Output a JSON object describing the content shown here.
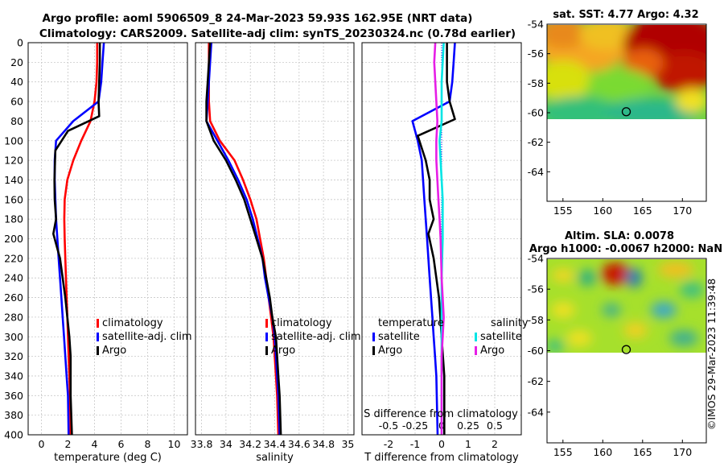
{
  "title": {
    "line1": "Argo profile: aoml 5906509_8 24-Mar-2023 59.93S 162.95E (NRT data)",
    "line2": "Climatology: CARS2009. Satellite-adj clim: synTS_20230324.nc (0.78d earlier)"
  },
  "colors": {
    "climatology": "#ff0000",
    "satellite": "#0000ff",
    "argo": "#000000",
    "sat_salinity": "#00e5e5",
    "argo_salinity": "#e61ee6"
  },
  "chart_data": [
    {
      "type": "line",
      "id": "temperature",
      "xlabel": "temperature (deg C)",
      "ylabel": "",
      "xlim": [
        -1,
        11
      ],
      "ylim": [
        0,
        400
      ],
      "y_reversed": true,
      "xticks": [
        "0",
        "2",
        "4",
        "6",
        "8",
        "10"
      ],
      "yticks": [
        "0",
        "20",
        "40",
        "60",
        "80",
        "100",
        "120",
        "140",
        "160",
        "180",
        "200",
        "220",
        "240",
        "260",
        "280",
        "300",
        "320",
        "340",
        "360",
        "380",
        "400"
      ],
      "grid": true,
      "legend": {
        "position": "lower-right",
        "entries": [
          "climatology",
          "satellite-adj. clim",
          "Argo"
        ]
      },
      "series": [
        {
          "name": "climatology",
          "color": "red",
          "x": [
            4.2,
            4.2,
            4.15,
            4.0,
            3.7,
            3.0,
            2.4,
            1.95,
            1.75,
            1.72,
            1.75,
            1.8,
            1.85,
            1.9,
            1.95,
            2.0,
            2.05,
            2.1,
            2.15,
            2.2
          ],
          "y": [
            0,
            20,
            40,
            60,
            80,
            100,
            120,
            140,
            160,
            180,
            200,
            220,
            240,
            260,
            280,
            300,
            320,
            340,
            360,
            400
          ]
        },
        {
          "name": "satellite-adj. clim",
          "color": "blue",
          "x": [
            4.7,
            4.6,
            4.5,
            4.3,
            2.4,
            1.1,
            1.0,
            1.0,
            1.05,
            1.1,
            1.2,
            1.3,
            1.4,
            1.5,
            1.6,
            1.7,
            1.8,
            1.9,
            2.0,
            2.05
          ],
          "y": [
            0,
            20,
            40,
            60,
            80,
            100,
            120,
            140,
            160,
            180,
            200,
            220,
            240,
            260,
            280,
            300,
            320,
            340,
            360,
            400
          ]
        },
        {
          "name": "Argo",
          "color": "black",
          "x": [
            4.4,
            4.4,
            4.35,
            4.3,
            4.35,
            2.0,
            1.05,
            0.98,
            1.0,
            1.1,
            0.9,
            1.4,
            1.6,
            1.8,
            1.95,
            2.1,
            2.2,
            2.2,
            2.2,
            2.3
          ],
          "y": [
            0,
            20,
            40,
            60,
            75,
            90,
            110,
            140,
            160,
            180,
            195,
            220,
            240,
            260,
            280,
            300,
            320,
            340,
            360,
            400
          ]
        }
      ]
    },
    {
      "type": "line",
      "id": "salinity",
      "xlabel": "salinity",
      "xlim": [
        33.75,
        35.05
      ],
      "ylim": [
        0,
        400
      ],
      "y_reversed": true,
      "xticks": [
        "33.8",
        "34",
        "34.2",
        "34.4",
        "34.6",
        "34.8",
        "35"
      ],
      "grid": true,
      "legend": {
        "position": "lower-right",
        "entries": [
          "climatology",
          "satellite-adj. clim",
          "Argo"
        ]
      },
      "series": [
        {
          "name": "climatology",
          "color": "red",
          "x": [
            33.86,
            33.86,
            33.86,
            33.86,
            33.87,
            33.95,
            34.07,
            34.14,
            34.2,
            34.25,
            34.28,
            34.31,
            34.33,
            34.35,
            34.37,
            34.39,
            34.4,
            34.41,
            34.42,
            34.43
          ],
          "y": [
            0,
            20,
            40,
            60,
            80,
            100,
            120,
            140,
            160,
            180,
            200,
            220,
            240,
            260,
            280,
            300,
            320,
            340,
            360,
            400
          ]
        },
        {
          "name": "satellite-adj. clim",
          "color": "blue",
          "x": [
            33.88,
            33.87,
            33.86,
            33.85,
            33.84,
            33.93,
            34.02,
            34.1,
            34.17,
            34.22,
            34.26,
            34.3,
            34.32,
            34.35,
            34.38,
            34.4,
            34.41,
            34.42,
            34.43,
            34.44
          ],
          "y": [
            0,
            20,
            40,
            60,
            80,
            100,
            120,
            140,
            160,
            180,
            200,
            220,
            240,
            260,
            280,
            300,
            320,
            340,
            360,
            400
          ]
        },
        {
          "name": "Argo",
          "color": "black",
          "x": [
            33.87,
            33.86,
            33.85,
            33.84,
            33.84,
            33.9,
            34.0,
            34.08,
            34.15,
            34.2,
            34.25,
            34.3,
            34.33,
            34.36,
            34.38,
            34.41,
            34.42,
            34.43,
            34.44,
            34.45
          ],
          "y": [
            0,
            20,
            40,
            60,
            80,
            100,
            120,
            140,
            160,
            180,
            200,
            220,
            240,
            260,
            280,
            300,
            320,
            340,
            360,
            400
          ]
        }
      ]
    },
    {
      "type": "line",
      "id": "difference",
      "xlabel": "T difference from climatology",
      "xlabel_top": "S difference from climatology",
      "xlim": [
        -3,
        3
      ],
      "ylim": [
        0,
        400
      ],
      "y_reversed": true,
      "xticks": [
        "-2",
        "-1",
        "0",
        "1",
        "2"
      ],
      "xticks_top": [
        "-0.5",
        "-0.25",
        "0",
        "0.25",
        "0.5"
      ],
      "grid": true,
      "legend": {
        "position": "lower-middle",
        "temperature_title": "temperature",
        "salinity_title": "salinity",
        "entries_t": [
          "satellite",
          "Argo"
        ],
        "entries_s": [
          "satellite",
          "Argo"
        ]
      },
      "series": [
        {
          "name": "T satellite",
          "color": "blue",
          "x": [
            0.5,
            0.45,
            0.4,
            0.3,
            -1.1,
            -0.9,
            -0.75,
            -0.7,
            -0.65,
            -0.6,
            -0.55,
            -0.5,
            -0.45,
            -0.4,
            -0.35,
            -0.3,
            -0.25,
            -0.2,
            -0.15
          ],
          "y": [
            0,
            20,
            40,
            60,
            80,
            100,
            120,
            140,
            160,
            180,
            200,
            220,
            240,
            260,
            280,
            300,
            320,
            340,
            400
          ]
        },
        {
          "name": "T Argo",
          "color": "black",
          "x": [
            0.2,
            0.2,
            0.2,
            0.3,
            0.5,
            -0.9,
            -0.6,
            -0.45,
            -0.45,
            -0.3,
            -0.5,
            -0.3,
            -0.2,
            -0.1,
            -0.05,
            0.0,
            0.05,
            0.1,
            0.1
          ],
          "y": [
            0,
            20,
            40,
            60,
            78,
            95,
            120,
            140,
            160,
            180,
            195,
            220,
            240,
            260,
            280,
            300,
            320,
            340,
            400
          ]
        },
        {
          "name": "S satellite",
          "color": "cyan",
          "x": [
            0.02,
            0.01,
            0.0,
            0.0,
            0.0,
            -0.02,
            -0.01,
            0.0,
            0.01,
            0.01,
            0.01,
            0.0,
            0.0,
            0.0,
            0.0,
            0.0,
            0.0,
            0.0
          ],
          "y": [
            0,
            20,
            40,
            60,
            80,
            100,
            120,
            140,
            160,
            180,
            200,
            240,
            260,
            280,
            300,
            320,
            360,
            400
          ]
        },
        {
          "name": "S Argo",
          "color": "magenta",
          "x": [
            -0.06,
            -0.07,
            -0.06,
            -0.05,
            -0.04,
            -0.05,
            -0.05,
            -0.04,
            -0.03,
            -0.02,
            -0.01,
            0.0,
            0.01,
            0.02,
            0.01,
            0.0,
            0.0,
            0.0
          ],
          "y": [
            0,
            20,
            40,
            60,
            80,
            100,
            120,
            140,
            160,
            180,
            200,
            240,
            260,
            280,
            300,
            320,
            360,
            400
          ]
        }
      ]
    },
    {
      "type": "heatmap",
      "id": "sst-map",
      "title": "sat. SST: 4.77 Argo: 4.32",
      "xlim": [
        153,
        173
      ],
      "ylim": [
        -66,
        -54
      ],
      "xticks": [
        "155",
        "160",
        "165",
        "170"
      ],
      "yticks": [
        "-54",
        "-56",
        "-58",
        "-60",
        "-62",
        "-64"
      ],
      "marker": {
        "lon": 162.95,
        "lat": -59.93
      },
      "data_coverage_lat": [
        -60.2,
        -54
      ]
    },
    {
      "type": "heatmap",
      "id": "sla-map",
      "title": "Altim. SLA: 0.0078",
      "subtitle": "Argo h1000: -0.0067 h2000: NaN",
      "xlim": [
        153,
        173
      ],
      "ylim": [
        -66,
        -54
      ],
      "xticks": [
        "155",
        "160",
        "165",
        "170"
      ],
      "yticks": [
        "-54",
        "-56",
        "-58",
        "-60",
        "-62",
        "-64"
      ],
      "marker": {
        "lon": 162.95,
        "lat": -59.93
      },
      "data_coverage_lat": [
        -60.2,
        -54
      ]
    }
  ],
  "watermark": "©IMOS 29-Mar-2023 11:39:48"
}
